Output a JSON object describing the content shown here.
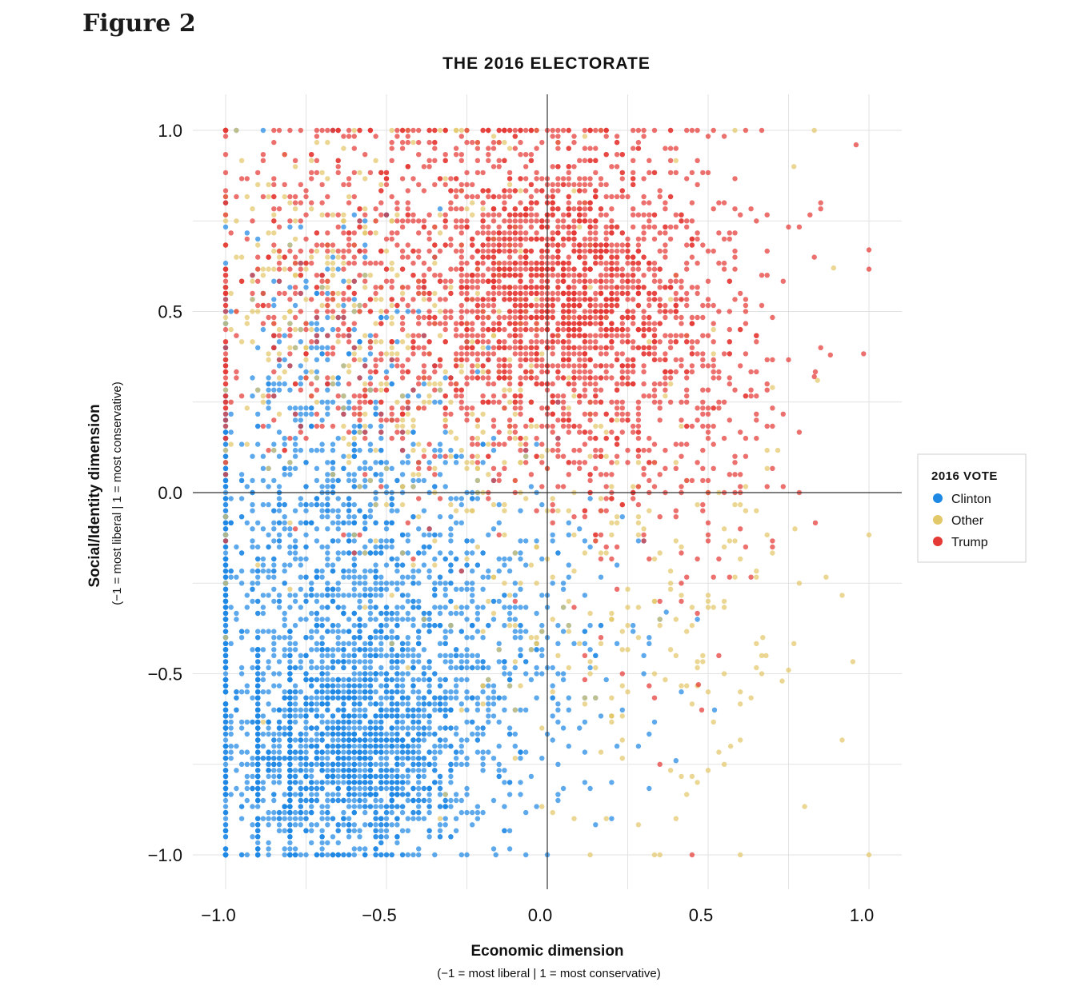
{
  "figure_label": "Figure 2",
  "chart_data": {
    "type": "scatter",
    "title": "THE 2016 ELECTORATE",
    "xlabel": "Economic dimension",
    "xlabel_sub": "(−1 = most liberal | 1 = most conservative)",
    "ylabel": "Social/Identity dimension",
    "ylabel_sub": "(−1 = most liberal | 1 = most conservative)",
    "xlim": [
      -1.0,
      1.1
    ],
    "ylim": [
      -1.1,
      1.1
    ],
    "xticks": [
      -1.0,
      -0.5,
      0.0,
      0.5,
      1.0
    ],
    "xtick_labels": [
      "−1.0",
      "−0.5",
      "0.0",
      "0.5",
      "1.0"
    ],
    "yticks": [
      -1.0,
      -0.5,
      0.0,
      0.5,
      1.0
    ],
    "ytick_labels": [
      "−1.0",
      "−0.5",
      "0.0",
      "0.5",
      "1.0"
    ],
    "grid": true,
    "legend": {
      "title": "2016 VOTE",
      "position": "right",
      "entries": [
        "Clinton",
        "Other",
        "Trump"
      ]
    },
    "series": [
      {
        "name": "Clinton",
        "color": "#1e88e5",
        "clusters": [
          {
            "n": 1300,
            "cx": -0.62,
            "cy": -0.72,
            "sx": 0.18,
            "sy": 0.15
          },
          {
            "n": 900,
            "cx": -0.55,
            "cy": -0.35,
            "sx": 0.25,
            "sy": 0.25
          },
          {
            "n": 500,
            "cx": -0.7,
            "cy": 0.1,
            "sx": 0.18,
            "sy": 0.3
          },
          {
            "n": 250,
            "cx": -0.1,
            "cy": -0.5,
            "sx": 0.2,
            "sy": 0.25
          },
          {
            "n": 220,
            "cx": -1.0,
            "cy": -0.5,
            "sx": 0.0,
            "sy": 0.45
          },
          {
            "n": 150,
            "cx": -0.9,
            "cy": -0.7,
            "sx": 0.0,
            "sy": 0.2
          },
          {
            "n": 140,
            "cx": -0.8,
            "cy": -0.75,
            "sx": 0.0,
            "sy": 0.18
          }
        ],
        "points": [
          [
            -1.0,
            -1.0
          ],
          [
            0.0,
            -1.0
          ],
          [
            -0.16,
            -1.0
          ],
          [
            0.2,
            -0.9
          ],
          [
            0.4,
            -0.74
          ],
          [
            0.52,
            -0.6
          ],
          [
            0.3,
            -0.45
          ],
          [
            0.37,
            -0.33
          ]
        ]
      },
      {
        "name": "Other",
        "color": "#e3c86a",
        "clusters": [
          {
            "n": 350,
            "cx": -0.35,
            "cy": 0.3,
            "sx": 0.35,
            "sy": 0.35
          },
          {
            "n": 200,
            "cx": 0.25,
            "cy": -0.35,
            "sx": 0.3,
            "sy": 0.3
          },
          {
            "n": 120,
            "cx": -0.75,
            "cy": 0.6,
            "sx": 0.15,
            "sy": 0.2
          }
        ],
        "points": [
          [
            0.83,
            1.0
          ],
          [
            0.89,
            0.62
          ],
          [
            1.0,
            -1.0
          ],
          [
            0.77,
            -0.1
          ],
          [
            0.75,
            -0.49
          ],
          [
            0.73,
            -0.52
          ],
          [
            0.68,
            -0.45
          ],
          [
            0.67,
            -0.4
          ],
          [
            0.57,
            -0.7
          ],
          [
            0.55,
            -0.75
          ],
          [
            0.84,
            0.31
          ],
          [
            0.7,
            0.29
          ]
        ]
      },
      {
        "name": "Trump",
        "color": "#e53935",
        "clusters": [
          {
            "n": 1500,
            "cx": 0.05,
            "cy": 0.55,
            "sx": 0.2,
            "sy": 0.22
          },
          {
            "n": 700,
            "cx": -0.35,
            "cy": 0.55,
            "sx": 0.3,
            "sy": 0.28
          },
          {
            "n": 400,
            "cx": 0.35,
            "cy": 0.3,
            "sx": 0.2,
            "sy": 0.3
          },
          {
            "n": 150,
            "cx": -0.75,
            "cy": 0.65,
            "sx": 0.15,
            "sy": 0.25
          },
          {
            "n": 50,
            "cx": -1.0,
            "cy": 0.5,
            "sx": 0.0,
            "sy": 0.3
          }
        ],
        "points": [
          [
            1.0,
            0.67
          ],
          [
            0.88,
            0.38
          ],
          [
            0.83,
            0.32
          ],
          [
            0.45,
            -1.0
          ],
          [
            0.35,
            -0.75
          ],
          [
            0.48,
            -0.6
          ],
          [
            0.6,
            -0.1
          ],
          [
            0.47,
            -0.53
          ],
          [
            0.96,
            0.96
          ],
          [
            0.83,
            0.65
          ]
        ]
      }
    ]
  }
}
